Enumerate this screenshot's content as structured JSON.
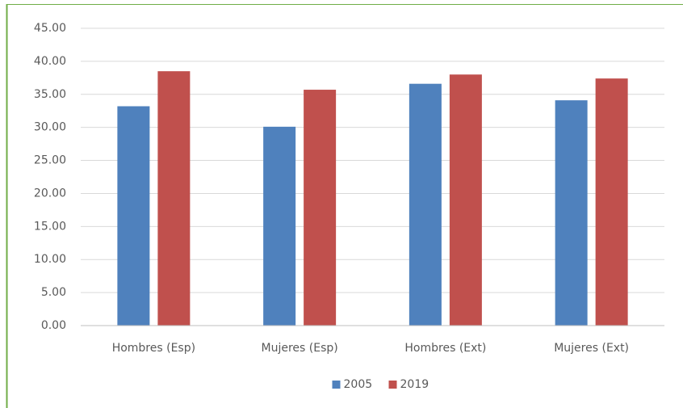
{
  "chart_data": {
    "type": "bar",
    "categories": [
      "Hombres (Esp)",
      "Mujeres (Esp)",
      "Hombres (Ext)",
      "Mujeres (Ext)"
    ],
    "series": [
      {
        "name": "2005",
        "color": "#4f81bd",
        "values": [
          33.2,
          30.1,
          36.6,
          34.1
        ]
      },
      {
        "name": "2019",
        "color": "#c0504d",
        "values": [
          38.5,
          35.7,
          38.0,
          37.4
        ]
      }
    ],
    "ylim": [
      0,
      45
    ],
    "yticks": [
      {
        "value": 0,
        "label": "0.00"
      },
      {
        "value": 5,
        "label": "5.00"
      },
      {
        "value": 10,
        "label": "10.00"
      },
      {
        "value": 15,
        "label": "15.00"
      },
      {
        "value": 20,
        "label": "20.00"
      },
      {
        "value": 25,
        "label": "25.00"
      },
      {
        "value": 30,
        "label": "30.00"
      },
      {
        "value": 35,
        "label": "35.00"
      },
      {
        "value": 40,
        "label": "40.00"
      },
      {
        "value": 45,
        "label": "45.00"
      }
    ],
    "grid": true,
    "legend": "bottom"
  }
}
